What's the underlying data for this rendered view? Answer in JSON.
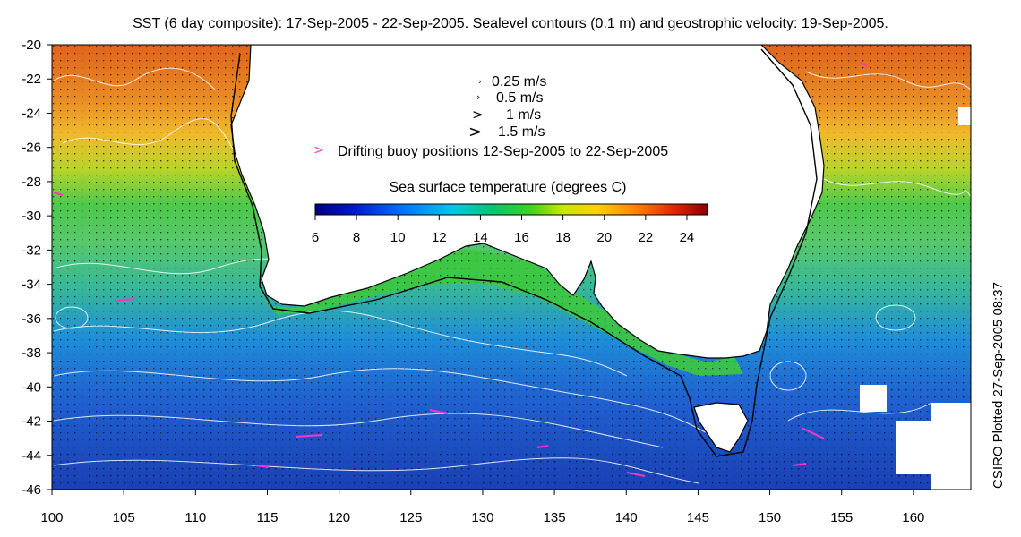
{
  "title": "SST (6 day composite): 17-Sep-2005 - 22-Sep-2005. Sealevel contours (0.1 m) and geostrophic velocity: 19-Sep-2005.",
  "side_label": "CSIRO Plotted 27-Sep-2005 08:37",
  "velocity_legend": [
    {
      "label": "0.25 m/s"
    },
    {
      "label": "0.5 m/s"
    },
    {
      "label": "1 m/s"
    },
    {
      "label": "1.5 m/s"
    }
  ],
  "buoy_legend": {
    "label": "Drifting buoy positions 12-Sep-2005 to 22-Sep-2005",
    "color": "#ff33cc"
  },
  "colorbar": {
    "title": "Sea surface temperature (degrees C)",
    "min": 6,
    "max": 25,
    "tick_labels": [
      "6",
      "8",
      "10",
      "12",
      "14",
      "16",
      "18",
      "20",
      "22",
      "24"
    ]
  },
  "chart_data": {
    "type": "heatmap",
    "title": "SST (6 day composite): 17-Sep-2005 - 22-Sep-2005. Sealevel contours (0.1 m) and geostrophic velocity: 19-Sep-2005.",
    "xlim": [
      100,
      164
    ],
    "ylim": [
      -46,
      -20
    ],
    "x_ticks": [
      "100",
      "105",
      "110",
      "115",
      "120",
      "125",
      "130",
      "135",
      "140",
      "145",
      "150",
      "155",
      "160"
    ],
    "y_ticks": [
      "-20",
      "-22",
      "-24",
      "-26",
      "-28",
      "-30",
      "-32",
      "-34",
      "-36",
      "-38",
      "-40",
      "-42",
      "-44",
      "-46"
    ],
    "sst_latitude_gradient": [
      {
        "lat": -21,
        "temp": 22.5
      },
      {
        "lat": -25,
        "temp": 20.5
      },
      {
        "lat": -28,
        "temp": 18.0
      },
      {
        "lat": -31,
        "temp": 16.0
      },
      {
        "lat": -35,
        "temp": 15.0
      },
      {
        "lat": -38,
        "temp": 12.5
      },
      {
        "lat": -41,
        "temp": 10.5
      },
      {
        "lat": -45,
        "temp": 8.5
      }
    ]
  },
  "colors": {
    "land": "#ffffff",
    "coastline": "#000000",
    "contours": "#ffffff",
    "vectors": "#000000"
  }
}
